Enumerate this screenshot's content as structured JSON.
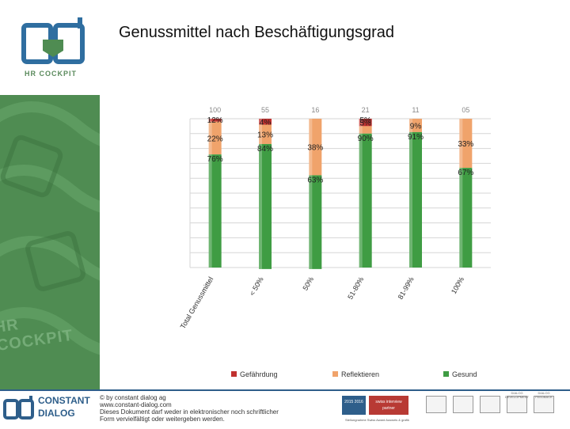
{
  "header": {
    "title": "Genussmittel nach Beschäftigungsgrad",
    "logo_text": "HR COCKPIT"
  },
  "sidebar": {
    "watermark_text": "HR COCKPIT"
  },
  "colors": {
    "gefaehrdung": "#c0312f",
    "reflektieren": "#f0a36b",
    "gesund": "#3f9c43",
    "sidebar": "#4f8c52",
    "brand_blue": "#2e5e8a"
  },
  "chart_data": {
    "type": "bar",
    "stacked": true,
    "percent_stacked": true,
    "counts_prefix": "n=",
    "categories": [
      "Total Genussmittel",
      "< 50%",
      "50%",
      "51-80%",
      "81-99%",
      "100%"
    ],
    "counts": [
      "100",
      "55",
      "16",
      "21",
      "11",
      "05"
    ],
    "series": [
      {
        "name": "Gefährdung",
        "values": [
          2,
          4,
          0,
          5,
          0,
          0
        ],
        "labels": [
          "",
          "4%",
          "",
          "5%",
          "",
          ""
        ]
      },
      {
        "name": "Reflektieren",
        "values": [
          22,
          13,
          38,
          5,
          9,
          33
        ],
        "labels": [
          "22%",
          "13%",
          "38%",
          "",
          "9%",
          "33%"
        ]
      },
      {
        "name": "Gesund",
        "values": [
          76,
          84,
          63,
          90,
          91,
          67
        ],
        "labels": [
          "76%",
          "84%",
          "63%",
          "90%",
          "91%",
          "67%"
        ]
      }
    ],
    "extra_top_labels": [
      "12%",
      "",
      "",
      "5%",
      "",
      ""
    ],
    "ylim": [
      0,
      100
    ],
    "grid": true,
    "legend": "bottom"
  },
  "footer": {
    "brand_line1": "CONSTANT",
    "brand_line2": "DIALOG",
    "copyright": "© by constant dialog ag",
    "url": "www.constant-dialog.com",
    "notice_line1": "Dieses Dokument darf weder in elektronischer noch schriftlicher",
    "notice_line2": "Form vervielfältigt oder weitergeben werden.",
    "badge1": "2015 2016",
    "badge2": "swiss interview partner",
    "mini_text": "Stellungnahme   Swiss Award   Ausweis & grafik",
    "icon_labels": [
      "",
      "",
      "",
      "DIALOG DEVELOPMENT",
      "DIALOG FEEDBACK"
    ]
  }
}
